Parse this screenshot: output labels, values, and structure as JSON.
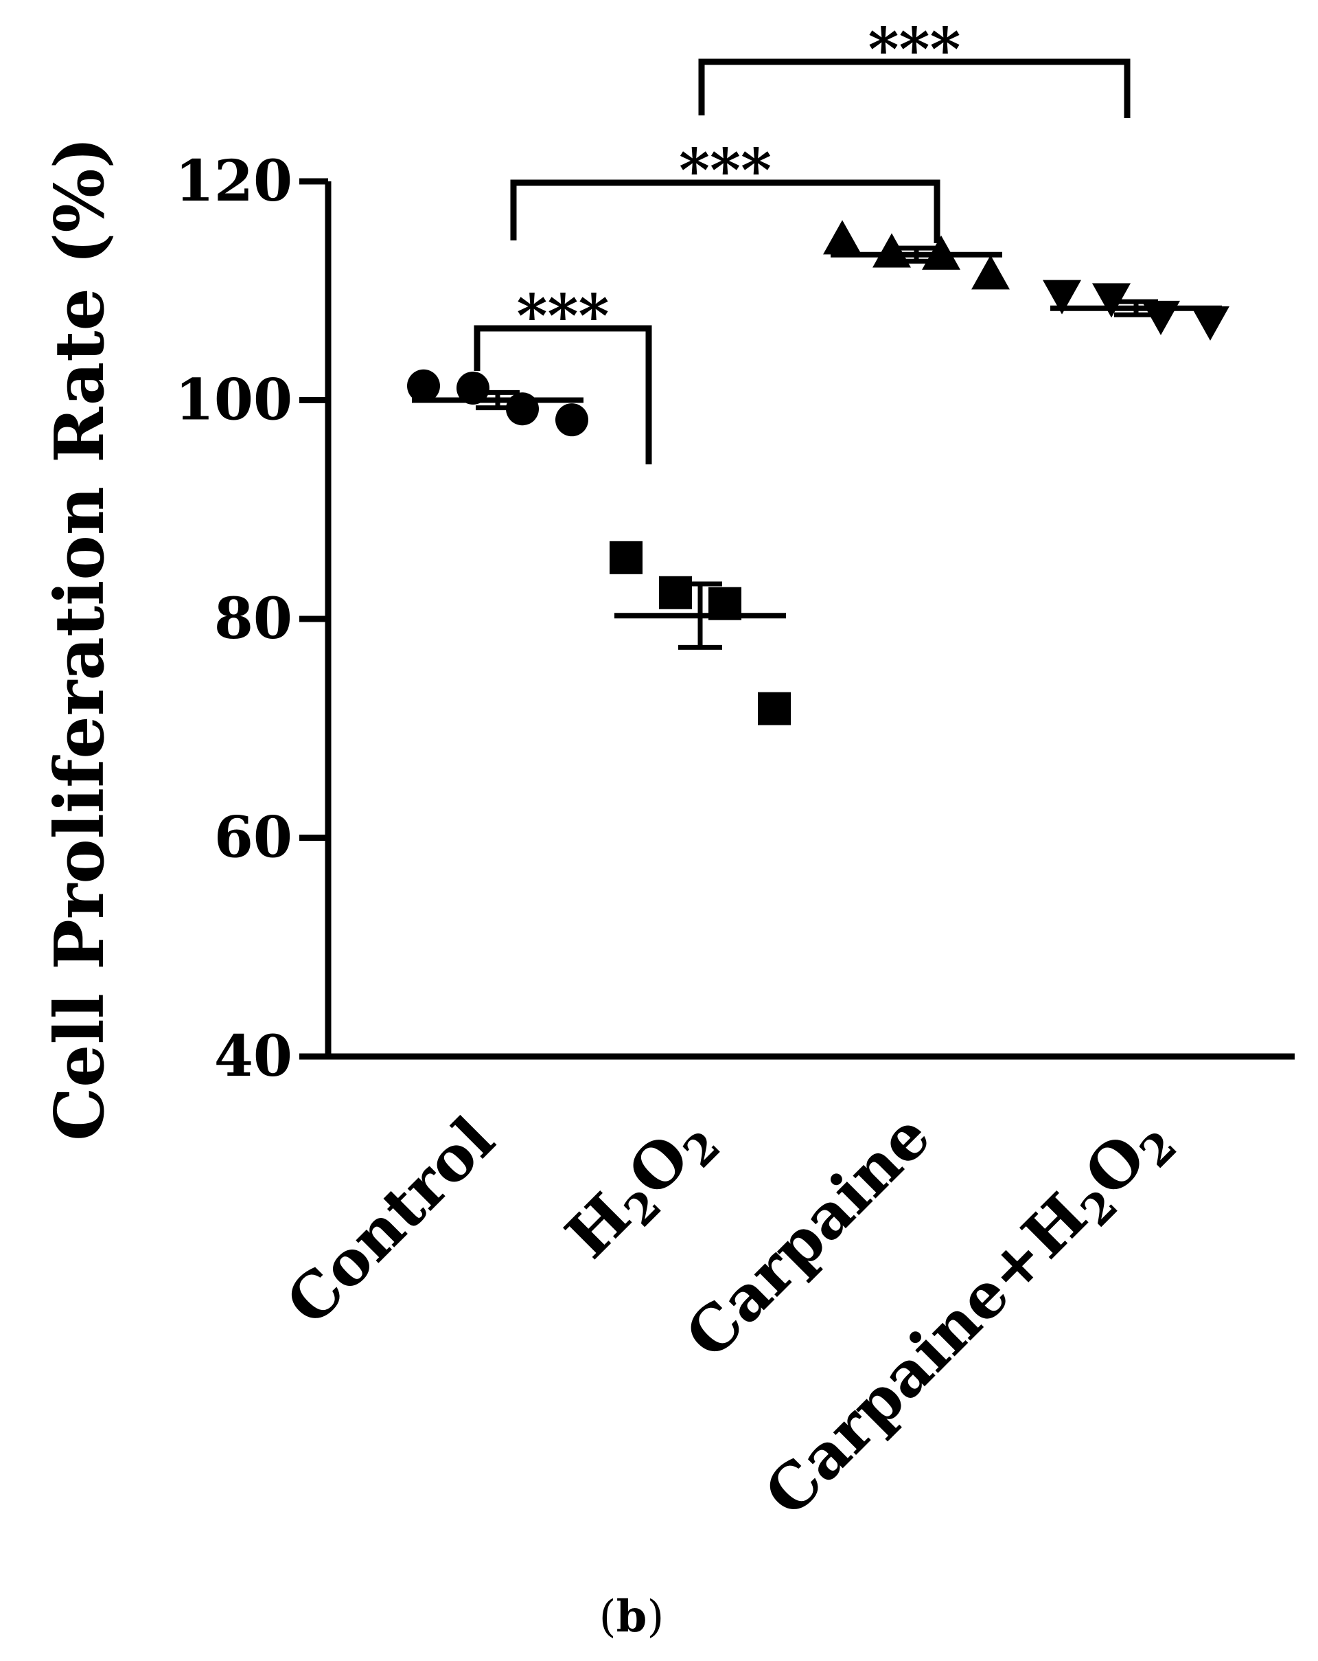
{
  "figure_label": {
    "open": "(",
    "letter": "b",
    "close": ")"
  },
  "chart_data": {
    "type": "scatter",
    "ylabel": "Cell Proliferation Rate (%)",
    "ylim": [
      40,
      120
    ],
    "yticks": [
      40,
      60,
      80,
      100,
      120
    ],
    "categories": [
      {
        "text": "Control",
        "sub": "",
        "tail": ""
      },
      {
        "text": "H",
        "sub": "2",
        "tail": "O",
        "sub2": "2"
      },
      {
        "text": "Carpaine",
        "sub": "",
        "tail": ""
      },
      {
        "text": "Carpaine+H",
        "sub": "2",
        "tail": "O",
        "sub2": "2"
      }
    ],
    "series": [
      {
        "marker": "circle",
        "points": [
          101.3,
          101.1,
          99.2,
          98.2
        ],
        "mean": 100.0,
        "sem": 0.7
      },
      {
        "marker": "square",
        "points": [
          85.6,
          82.4,
          81.4,
          71.8
        ],
        "mean": 80.3,
        "sem": 2.9
      },
      {
        "marker": "triangle-up",
        "points": [
          114.7,
          113.5,
          113.3,
          111.5
        ],
        "mean": 113.3,
        "sem": 0.6
      },
      {
        "marker": "triangle-down",
        "points": [
          109.6,
          109.3,
          107.7,
          107.2
        ],
        "mean": 108.4,
        "sem": 0.6
      }
    ],
    "significance": [
      {
        "from": 0,
        "to": 1,
        "label": "***"
      },
      {
        "from": 0,
        "to": 2,
        "label": "***"
      },
      {
        "from": 1,
        "to": 3,
        "label": "***"
      }
    ],
    "grid": false,
    "legend": "none"
  }
}
